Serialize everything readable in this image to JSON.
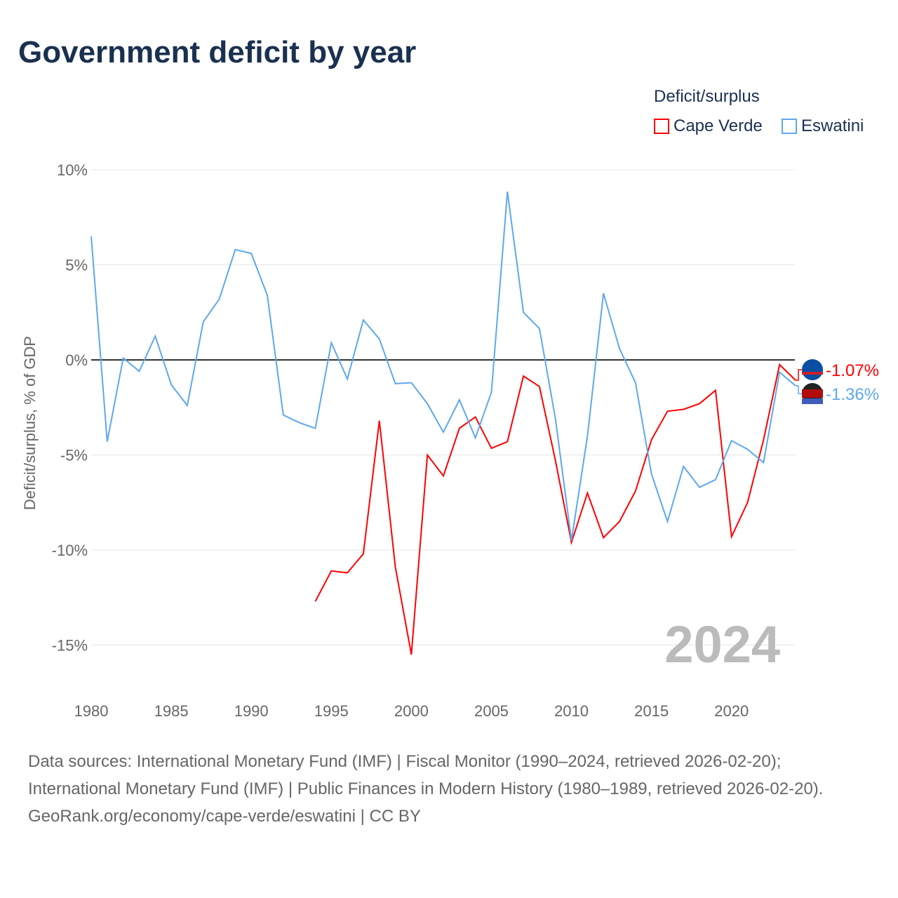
{
  "chart_data": {
    "type": "line",
    "title": "Government deficit by year",
    "ylabel": "Deficit/surplus, % of GDP",
    "xlabel": "",
    "xlim": [
      1980,
      2024
    ],
    "ylim": [
      -17,
      10
    ],
    "y_ticks": [
      10,
      5,
      0,
      -5,
      -10,
      -15
    ],
    "y_tick_labels": [
      "10%",
      "5%",
      "0%",
      "-5%",
      "-10%",
      "-15%"
    ],
    "x_ticks": [
      1980,
      1985,
      1990,
      1995,
      2000,
      2005,
      2010,
      2015,
      2020
    ],
    "legend_title": "Deficit/surplus",
    "year_label": "2024",
    "series": [
      {
        "name": "Cape Verde",
        "color": "#ff0000",
        "end_label": "-1.07%",
        "start_year": 1994,
        "values": [
          -12.7,
          -11.1,
          -11.2,
          -10.2,
          -3.2,
          -10.9,
          -15.5,
          -5.0,
          -6.1,
          -3.6,
          -3.0,
          -4.65,
          -4.3,
          -0.85,
          -1.4,
          -5.3,
          -9.6,
          -7.0,
          -9.35,
          -8.5,
          -6.9,
          -4.2,
          -2.7,
          -2.6,
          -2.3,
          -1.6,
          -9.3,
          -7.5,
          -4.2,
          -0.25,
          -1.07
        ]
      },
      {
        "name": "Eswatini",
        "color": "#5ea8ee",
        "end_label": "-1.36%",
        "start_year": 1980,
        "values": [
          6.5,
          -4.3,
          0.1,
          -0.6,
          1.25,
          -1.3,
          -2.4,
          2.0,
          3.2,
          5.8,
          5.6,
          3.4,
          -2.9,
          -3.3,
          -3.6,
          0.9,
          -1.0,
          2.1,
          1.1,
          -1.25,
          -1.2,
          -2.3,
          -3.8,
          -2.1,
          -4.1,
          -1.7,
          8.85,
          2.5,
          1.65,
          -3.1,
          -9.5,
          -4.0,
          3.5,
          0.6,
          -1.2,
          -6.0,
          -8.5,
          -5.6,
          -6.7,
          -6.3,
          -4.25,
          -4.7,
          -5.4,
          -0.65,
          -1.36
        ]
      }
    ]
  },
  "sources": [
    "Data sources: International Monetary Fund (IMF) | Fiscal Monitor (1990–2024, retrieved 2026-02-20); International Monetary Fund (IMF) | Public Finances in Modern History (1980–1989, retrieved 2026-02-20).",
    "GeoRank.org/economy/cape-verde/eswatini | CC BY"
  ]
}
